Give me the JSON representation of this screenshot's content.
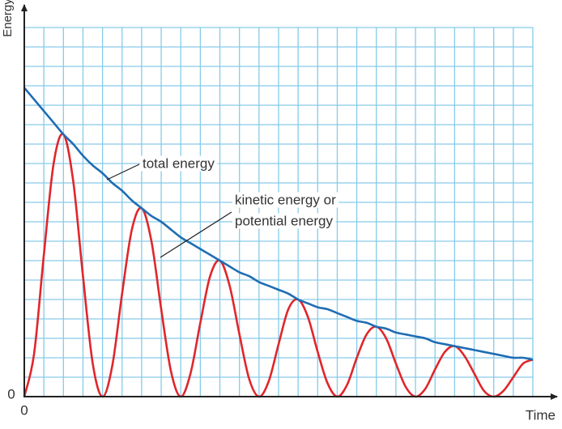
{
  "chart_data": {
    "type": "line",
    "x_label": "Time",
    "y_label": "Energy",
    "xlim": [
      0,
      26
    ],
    "ylim": [
      0,
      19
    ],
    "xticks": [
      0
    ],
    "yticks": [
      0
    ],
    "xgrid": [
      0,
      1,
      2,
      3,
      4,
      5,
      6,
      7,
      8,
      9,
      10,
      11,
      12,
      13,
      14,
      15,
      16,
      17,
      18,
      19,
      20,
      21,
      22,
      23,
      24,
      25,
      26
    ],
    "ygrid": [
      0,
      1,
      2,
      3,
      4,
      5,
      6,
      7,
      8,
      9,
      10,
      11,
      12,
      13,
      14,
      15,
      16,
      17,
      18,
      19
    ],
    "grid": true,
    "grid_color": "#86cbe9",
    "x": [
      0,
      0.5,
      1,
      1.5,
      2,
      2.5,
      3,
      3.5,
      4,
      4.5,
      5,
      5.5,
      6,
      6.5,
      7,
      7.5,
      8,
      8.5,
      9,
      9.5,
      10,
      10.5,
      11,
      11.5,
      12,
      12.5,
      13,
      13.5,
      14,
      14.5,
      15,
      15.5,
      16,
      16.5,
      17,
      17.5,
      18,
      18.5,
      19,
      19.5,
      20,
      20.5,
      21,
      21.5,
      22,
      22.5,
      23,
      23.5,
      24,
      24.5,
      25,
      25.5,
      26
    ],
    "series": [
      {
        "name": "total energy",
        "color": "#1f6db3",
        "values": [
          15.9,
          15.3,
          14.7,
          14.1,
          13.5,
          13.0,
          12.4,
          11.9,
          11.5,
          11.0,
          10.6,
          10.1,
          9.7,
          9.3,
          9.0,
          8.6,
          8.2,
          7.9,
          7.6,
          7.3,
          7.0,
          6.7,
          6.4,
          6.2,
          5.9,
          5.7,
          5.5,
          5.3,
          5.0,
          4.8,
          4.6,
          4.5,
          4.3,
          4.1,
          3.9,
          3.8,
          3.6,
          3.5,
          3.3,
          3.2,
          3.1,
          3.0,
          2.8,
          2.7,
          2.6,
          2.5,
          2.4,
          2.3,
          2.2,
          2.1,
          2.0,
          2.0,
          1.9
        ]
      },
      {
        "name": [
          "kinetic energy or",
          "potential energy"
        ],
        "color": "#e0262b",
        "values": [
          0,
          2.2,
          7.3,
          12.0,
          13.5,
          11.1,
          6.2,
          1.7,
          0,
          1.6,
          5.3,
          8.6,
          9.7,
          8.0,
          4.5,
          1.3,
          0,
          1.2,
          3.8,
          6.2,
          7.0,
          5.7,
          3.2,
          0.9,
          0,
          0.8,
          2.7,
          4.5,
          5.0,
          4.1,
          2.3,
          0.7,
          0,
          0.6,
          2.0,
          3.2,
          3.6,
          3.0,
          1.7,
          0.5,
          0,
          0.4,
          1.4,
          2.3,
          2.6,
          2.1,
          1.2,
          0.3,
          0,
          0.3,
          1.0,
          1.7,
          1.9
        ]
      }
    ]
  }
}
